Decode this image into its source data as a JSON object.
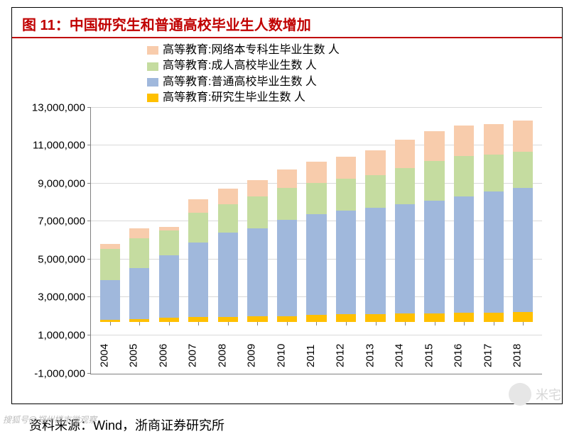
{
  "title": "图 11：中国研究生和普通高校毕业生人数增加",
  "source": "资料来源：Wind，浙商证券研究所",
  "watermark_left": "搜狐号@郑州楼市微观察",
  "watermark_right": "米宅",
  "chart": {
    "type": "stacked-bar",
    "background_color": "#ffffff",
    "border_color": "#000000",
    "title_color": "#c00000",
    "title_fontsize": 20,
    "axis_color": "#808080",
    "grid_color": "#d9d9d9",
    "label_fontsize": 15,
    "bar_width": 0.68,
    "ylim": [
      -1000000,
      13000000
    ],
    "ytick_step": 2000000,
    "yticks": [
      "-1,000,000",
      "1,000,000",
      "3,000,000",
      "5,000,000",
      "7,000,000",
      "9,000,000",
      "11,000,000",
      "13,000,000"
    ],
    "categories": [
      "2004",
      "2005",
      "2006",
      "2007",
      "2008",
      "2009",
      "2010",
      "2011",
      "2012",
      "2013",
      "2014",
      "2015",
      "2016",
      "2017",
      "2018"
    ],
    "series": [
      {
        "name": "高等教育:研究生毕业生数 人",
        "color": "#ffc000",
        "values": [
          150000,
          190000,
          260000,
          310000,
          340000,
          370000,
          380000,
          430000,
          490000,
          510000,
          540000,
          550000,
          560000,
          580000,
          600000
        ]
      },
      {
        "name": "高等教育:普通高校毕业生数 人",
        "color": "#a0b8dc",
        "values": [
          2400000,
          3100000,
          3800000,
          4500000,
          5100000,
          5300000,
          5800000,
          6100000,
          6250000,
          6400000,
          6600000,
          6800000,
          7050000,
          7350000,
          7530000
        ]
      },
      {
        "name": "高等教育:成人高校毕业生数 人",
        "color": "#c5dca0",
        "values": [
          1900000,
          1800000,
          1500000,
          1800000,
          1700000,
          1950000,
          1950000,
          1900000,
          1950000,
          2000000,
          2200000,
          2400000,
          2450000,
          2200000,
          2200000
        ]
      },
      {
        "name": "高等教育:网络本专科生毕业生数 人",
        "color": "#f8ccac",
        "values": [
          300000,
          600000,
          200000,
          850000,
          950000,
          1000000,
          1100000,
          1300000,
          1350000,
          1500000,
          1700000,
          1800000,
          1850000,
          1850000,
          1900000
        ]
      }
    ],
    "legend_order": [
      3,
      2,
      1,
      0
    ]
  }
}
